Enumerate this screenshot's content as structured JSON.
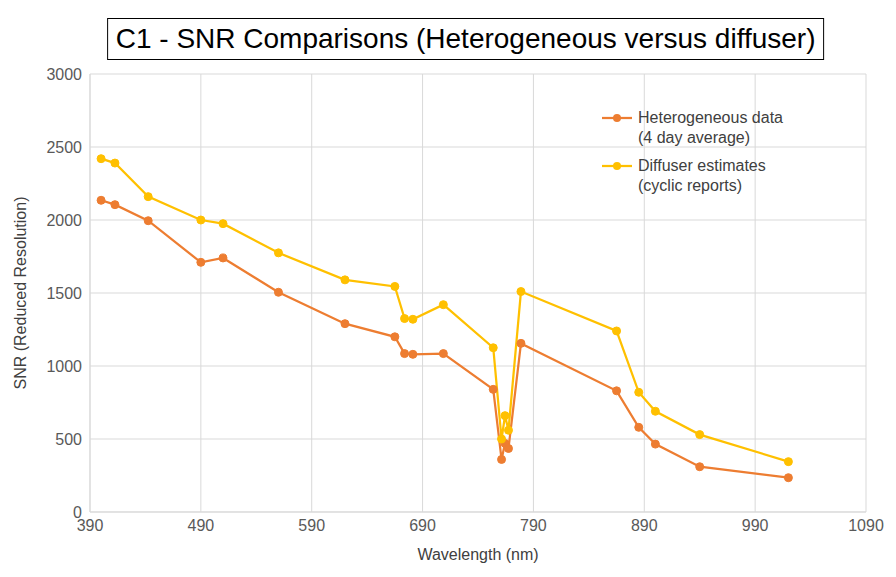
{
  "chart_data": {
    "type": "line",
    "title": "C1 - SNR Comparisons (Heterogeneous versus diffuser)",
    "x_label": "Wavelength (nm)",
    "y_label": "SNR (Reduced Resolution)",
    "x": [
      400,
      412.5,
      442.5,
      490,
      510,
      560,
      620,
      665,
      673.75,
      681.25,
      708.75,
      753.75,
      761.25,
      764.375,
      767.5,
      778.75,
      865,
      885,
      900,
      940,
      1020
    ],
    "series": [
      {
        "name": "Heterogeneous data (4 day average)",
        "color": "#ED7D31",
        "marker": "circle",
        "values": [
          2135,
          2105,
          1995,
          1710,
          1740,
          1505,
          1290,
          1200,
          1085,
          1080,
          1085,
          840,
          360,
          470,
          435,
          1155,
          830,
          580,
          465,
          310,
          235
        ]
      },
      {
        "name": "Diffuser estimates (cyclic reports)",
        "color": "#FFC000",
        "marker": "circle",
        "values": [
          2420,
          2390,
          2160,
          2000,
          1975,
          1775,
          1590,
          1545,
          1325,
          1320,
          1420,
          1125,
          500,
          660,
          560,
          1510,
          1240,
          820,
          690,
          530,
          345
        ]
      }
    ],
    "xlim": [
      390,
      1090
    ],
    "xticks": [
      390,
      490,
      590,
      690,
      790,
      890,
      990,
      1090
    ],
    "ylim": [
      0,
      3000
    ],
    "yticks": [
      0,
      500,
      1000,
      1500,
      2000,
      2500,
      3000
    ],
    "grid": true,
    "legend": "upper right"
  }
}
